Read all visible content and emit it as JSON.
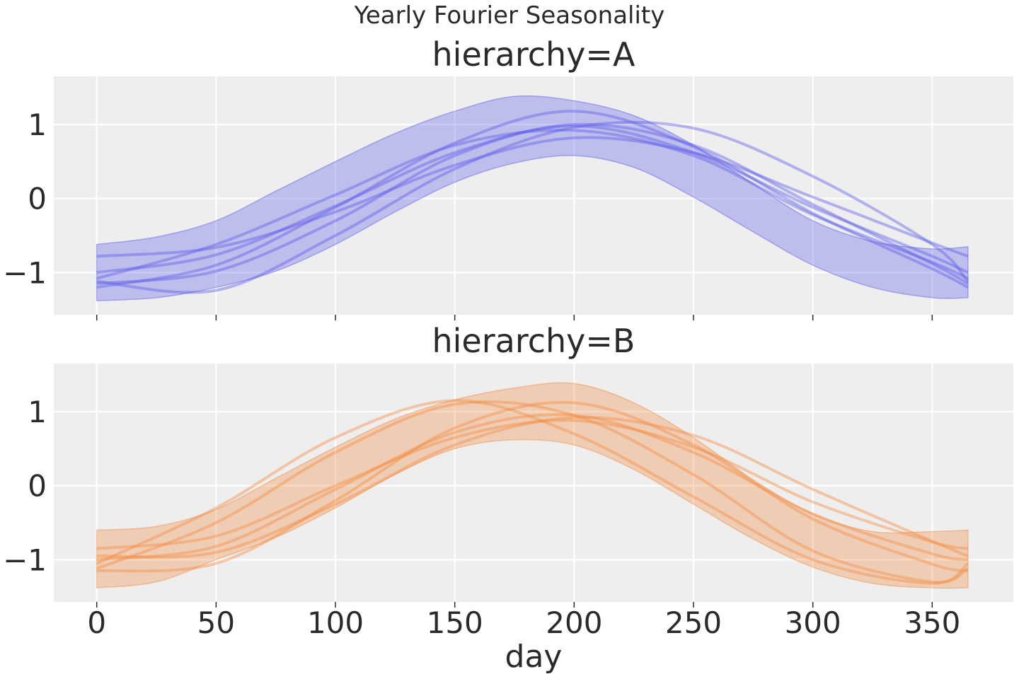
{
  "figure": {
    "suptitle": "Yearly Fourier Seasonality"
  },
  "chart_data": [
    {
      "type": "line",
      "title": "hierarchy=A",
      "xlabel": "",
      "ylabel": "",
      "xlim": [
        -18,
        384
      ],
      "ylim": [
        -1.57,
        1.65
      ],
      "xticks": [
        0,
        50,
        100,
        150,
        200,
        250,
        300,
        350
      ],
      "yticks": [
        -1,
        0,
        1
      ],
      "ytick_labels": [
        "−1",
        "0",
        "1"
      ],
      "grid": true,
      "color": "#5b5bea",
      "band": {
        "x": [
          0,
          25,
          50,
          75,
          100,
          125,
          150,
          175,
          200,
          225,
          250,
          275,
          300,
          325,
          350,
          365
        ],
        "lower": [
          -1.38,
          -1.34,
          -1.2,
          -0.98,
          -0.62,
          -0.18,
          0.22,
          0.48,
          0.58,
          0.42,
          0.02,
          -0.45,
          -0.9,
          -1.2,
          -1.34,
          -1.34
        ],
        "upper": [
          -0.62,
          -0.52,
          -0.3,
          0.1,
          0.5,
          0.88,
          1.18,
          1.38,
          1.32,
          1.12,
          0.72,
          0.2,
          -0.3,
          -0.58,
          -0.68,
          -0.65
        ]
      },
      "series": [
        {
          "x": [
            0,
            50,
            100,
            150,
            200,
            250,
            300,
            350,
            365
          ],
          "y": [
            -1.0,
            -0.76,
            -0.1,
            0.62,
            0.98,
            0.62,
            -0.12,
            -0.78,
            -1.0
          ]
        },
        {
          "x": [
            0,
            50,
            100,
            150,
            200,
            250,
            300,
            350,
            365
          ],
          "y": [
            -1.2,
            -0.9,
            -0.12,
            0.75,
            1.18,
            0.7,
            -0.2,
            -0.95,
            -1.2
          ]
        },
        {
          "x": [
            0,
            50,
            100,
            150,
            200,
            250,
            300,
            350,
            365
          ],
          "y": [
            -0.78,
            -0.66,
            -0.18,
            0.45,
            0.82,
            0.62,
            0.02,
            -0.6,
            -0.78
          ]
        },
        {
          "x": [
            0,
            50,
            100,
            150,
            200,
            250,
            300,
            350,
            365
          ],
          "y": [
            -1.12,
            -1.24,
            -0.5,
            0.4,
            0.96,
            0.95,
            0.3,
            -0.62,
            -1.12
          ]
        },
        {
          "x": [
            0,
            50,
            100,
            150,
            200,
            250,
            300,
            350,
            365
          ],
          "y": [
            -1.08,
            -0.62,
            0.05,
            0.72,
            0.92,
            0.58,
            -0.22,
            -0.86,
            -1.08
          ]
        },
        {
          "x": [
            0,
            50,
            100,
            150,
            200,
            250,
            300,
            350,
            365
          ],
          "y": [
            -1.15,
            -0.98,
            -0.3,
            0.58,
            1.0,
            0.72,
            -0.08,
            -0.88,
            -1.15
          ]
        }
      ]
    },
    {
      "type": "line",
      "title": "hierarchy=B",
      "xlabel": "day",
      "ylabel": "",
      "xlim": [
        -18,
        384
      ],
      "ylim": [
        -1.57,
        1.65
      ],
      "xticks": [
        0,
        50,
        100,
        150,
        200,
        250,
        300,
        350
      ],
      "yticks": [
        -1,
        0,
        1
      ],
      "ytick_labels": [
        "−1",
        "0",
        "1"
      ],
      "grid": true,
      "color": "#f28a3d",
      "band": {
        "x": [
          0,
          25,
          50,
          75,
          100,
          125,
          150,
          175,
          200,
          225,
          250,
          275,
          300,
          325,
          350,
          365
        ],
        "lower": [
          -1.38,
          -1.3,
          -1.0,
          -0.7,
          -0.3,
          0.15,
          0.5,
          0.62,
          0.55,
          0.22,
          -0.25,
          -0.72,
          -1.1,
          -1.32,
          -1.38,
          -1.38
        ],
        "upper": [
          -0.6,
          -0.55,
          -0.32,
          0.1,
          0.52,
          0.9,
          1.16,
          1.32,
          1.38,
          1.12,
          0.65,
          0.08,
          -0.38,
          -0.62,
          -0.62,
          -0.6
        ]
      },
      "series": [
        {
          "x": [
            0,
            50,
            100,
            150,
            200,
            250,
            300,
            350,
            365
          ],
          "y": [
            -1.0,
            -0.82,
            -0.05,
            0.72,
            0.95,
            0.45,
            -0.38,
            -0.92,
            -1.0
          ]
        },
        {
          "x": [
            0,
            50,
            100,
            150,
            200,
            250,
            300,
            350,
            365
          ],
          "y": [
            -1.12,
            -0.5,
            0.45,
            1.1,
            0.95,
            0.15,
            -0.88,
            -1.3,
            -1.12
          ]
        },
        {
          "x": [
            0,
            50,
            100,
            150,
            200,
            250,
            300,
            350,
            365
          ],
          "y": [
            -0.85,
            -0.68,
            0.0,
            0.65,
            0.88,
            0.52,
            -0.22,
            -0.76,
            -0.85
          ]
        },
        {
          "x": [
            0,
            50,
            100,
            150,
            200,
            250,
            300,
            350,
            365
          ],
          "y": [
            -1.15,
            -1.05,
            -0.2,
            0.78,
            1.12,
            0.55,
            -0.45,
            -1.06,
            -1.15
          ]
        },
        {
          "x": [
            0,
            50,
            100,
            150,
            200,
            250,
            300,
            350,
            365
          ],
          "y": [
            -0.95,
            -0.9,
            -0.25,
            0.55,
            0.92,
            0.68,
            -0.05,
            -0.75,
            -0.95
          ]
        },
        {
          "x": [
            0,
            50,
            100,
            150,
            200,
            250,
            300,
            350,
            365
          ],
          "y": [
            -1.05,
            -0.3,
            0.65,
            1.15,
            0.7,
            -0.15,
            -1.0,
            -1.32,
            -1.05
          ]
        }
      ]
    }
  ]
}
